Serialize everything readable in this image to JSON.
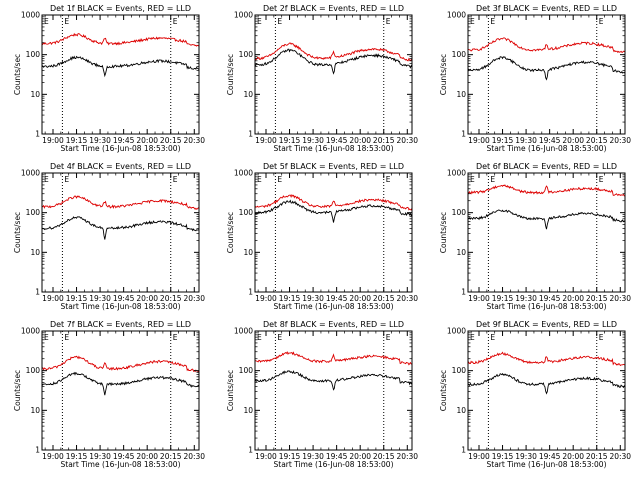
{
  "chart_data": {
    "type": "line",
    "layout": "3x3 grid",
    "legend_title_template": "BLACK = Events, RED = LLD",
    "xlabel": "Start Time (16-Jun-08 18:53:00)",
    "ylabel": "Counts/sec",
    "xlim_minutes_after_start": [
      0,
      100
    ],
    "x_tick_labels": [
      "19:00",
      "19:15",
      "19:30",
      "19:45",
      "20:00",
      "20:15",
      "20:30"
    ],
    "x_tick_minutes_after_start": [
      7,
      22,
      37,
      52,
      67,
      82,
      97
    ],
    "yscale": "log",
    "ylim": [
      1,
      1000
    ],
    "y_tick_labels": [
      "1",
      "10",
      "100",
      "1000"
    ],
    "vertical_markers": [
      {
        "label": "",
        "x_minutes": 0
      },
      {
        "label": "",
        "x_minutes": 13
      },
      {
        "label": "E",
        "x_minutes": 13
      },
      {
        "label": "",
        "x_minutes": 82
      },
      {
        "label": "E",
        "x_minutes": 82
      },
      {
        "label": "",
        "x_minutes": 100
      }
    ],
    "marker_letter": "E",
    "colors": {
      "events": "#000000",
      "lld": "#dd0000",
      "axes": "#000000"
    },
    "panels": [
      {
        "title": "Det 1f BLACK = Events, RED = LLD",
        "events_base": 50,
        "events_peak": 85,
        "lld_base": 190,
        "lld_peak": 320,
        "spike_at_min": 40
      },
      {
        "title": "Det 2f BLACK = Events, RED = LLD",
        "events_base": 55,
        "events_peak": 130,
        "lld_base": 80,
        "lld_peak": 185,
        "spike_at_min": 50
      },
      {
        "title": "Det 3f BLACK = Events, RED = LLD",
        "events_base": 40,
        "events_peak": 85,
        "lld_base": 130,
        "lld_peak": 250,
        "spike_at_min": 50
      },
      {
        "title": "Det 4f BLACK = Events, RED = LLD",
        "events_base": 40,
        "events_peak": 75,
        "lld_base": 140,
        "lld_peak": 250,
        "spike_at_min": 40
      },
      {
        "title": "Det 5f BLACK = Events, RED = LLD",
        "events_base": 100,
        "events_peak": 190,
        "lld_base": 140,
        "lld_peak": 270,
        "spike_at_min": 50
      },
      {
        "title": "Det 6f BLACK = Events, RED = LLD",
        "events_base": 70,
        "events_peak": 115,
        "lld_base": 320,
        "lld_peak": 480,
        "spike_at_min": 50
      },
      {
        "title": "Det 7f BLACK = Events, RED = LLD",
        "events_base": 45,
        "events_peak": 85,
        "lld_base": 110,
        "lld_peak": 220,
        "spike_at_min": 40
      },
      {
        "title": "Det 8f BLACK = Events, RED = LLD",
        "events_base": 55,
        "events_peak": 95,
        "lld_base": 170,
        "lld_peak": 280,
        "spike_at_min": 50
      },
      {
        "title": "Det 9f BLACK = Events, RED = LLD",
        "events_base": 45,
        "events_peak": 80,
        "lld_base": 160,
        "lld_peak": 270,
        "spike_at_min": 50
      }
    ]
  }
}
